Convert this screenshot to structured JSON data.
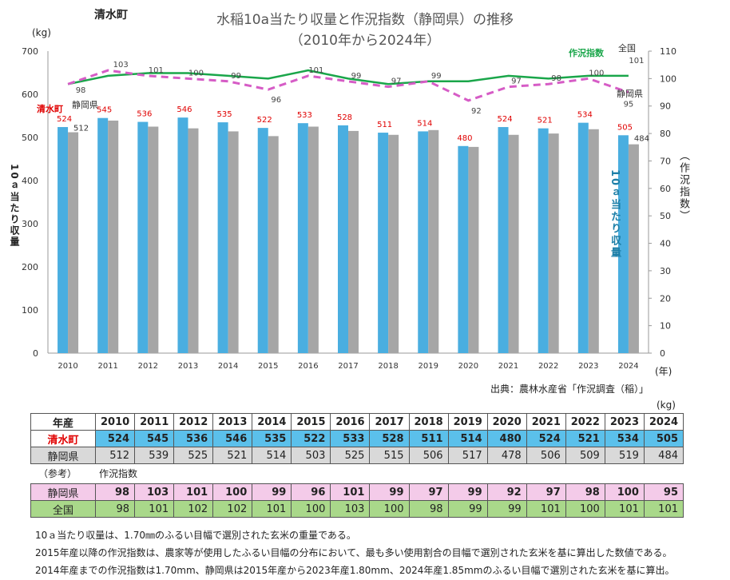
{
  "town_name": "清水町",
  "title_line1": "水稲10a当たり収量と作況指数（静岡県）の推移",
  "title_line2": "（2010年から2024年）",
  "left_unit": "(kg)",
  "left_axis_label": "10ａ当たり収量",
  "right_axis_label": "（作況指数）",
  "yield_label_right": "10ａ当たり収量",
  "x_unit": "(年)",
  "source": "出典：農林水産省「作況調査（稲）」",
  "series_labels": {
    "town": "清水町",
    "pref": "静岡県",
    "index": "作況指数",
    "national": "全国",
    "pref_index": "静岡県"
  },
  "chart_data": {
    "type": "bar+line",
    "title": "水稲10a当たり収量と作況指数（静岡県）の推移（2010年から2024年）",
    "categories": [
      "2010",
      "2011",
      "2012",
      "2013",
      "2014",
      "2015",
      "2016",
      "2017",
      "2018",
      "2019",
      "2020",
      "2021",
      "2022",
      "2023",
      "2024"
    ],
    "series": [
      {
        "name": "清水町",
        "axis": "left",
        "kind": "bar",
        "color": "#4aaee0",
        "values": [
          524,
          545,
          536,
          546,
          535,
          522,
          533,
          528,
          511,
          514,
          480,
          524,
          521,
          534,
          505
        ]
      },
      {
        "name": "静岡県",
        "axis": "left",
        "kind": "bar",
        "color": "#a6a6a6",
        "values": [
          512,
          539,
          525,
          521,
          514,
          503,
          525,
          515,
          506,
          517,
          478,
          506,
          509,
          519,
          484
        ]
      },
      {
        "name": "静岡県 作況指数",
        "axis": "right",
        "kind": "line",
        "style": "dashed",
        "color": "#d65cc6",
        "values": [
          98,
          103,
          101,
          100,
          99,
          96,
          101,
          99,
          97,
          99,
          92,
          97,
          98,
          100,
          95
        ]
      },
      {
        "name": "全国 作況指数",
        "axis": "right",
        "kind": "line",
        "style": "solid",
        "color": "#1aa64a",
        "values": [
          98,
          101,
          102,
          102,
          101,
          100,
          103,
          100,
          98,
          99,
          99,
          101,
          100,
          101,
          101
        ]
      }
    ],
    "ylim_left": [
      0,
      700
    ],
    "yticks_left": [
      0,
      100,
      200,
      300,
      400,
      500,
      600,
      700
    ],
    "ylim_right": [
      0,
      110
    ],
    "yticks_right": [
      0,
      10,
      20,
      30,
      40,
      50,
      60,
      70,
      80,
      90,
      100,
      110
    ],
    "xlabel": "(年)",
    "ylabel_left": "10ａ当たり収量 (kg)",
    "ylabel_right": "作況指数"
  },
  "table": {
    "unit": "(kg)",
    "year_header": "年産",
    "reference_label": "（参考）",
    "index_label": "作況指数",
    "row_town": "清水町",
    "row_pref": "静岡県",
    "row_index_pref": "静岡県",
    "row_index_national": "全国"
  },
  "notes": [
    "10ａ当たり収量は、1.70㎜のふるい目幅で選別された玄米の重量である。",
    "2015年産以降の作況指数は、農家等が使用したふるい目幅の分布において、最も多い使用割合の目幅で選別された玄米を基に算出した数値である。",
    "2014年産までの作況指数は1.70mm、静岡県は2015年産から2023年産1.80mm、2024年産1.85mmのふるい目幅で選別された玄米を基に算出。"
  ]
}
